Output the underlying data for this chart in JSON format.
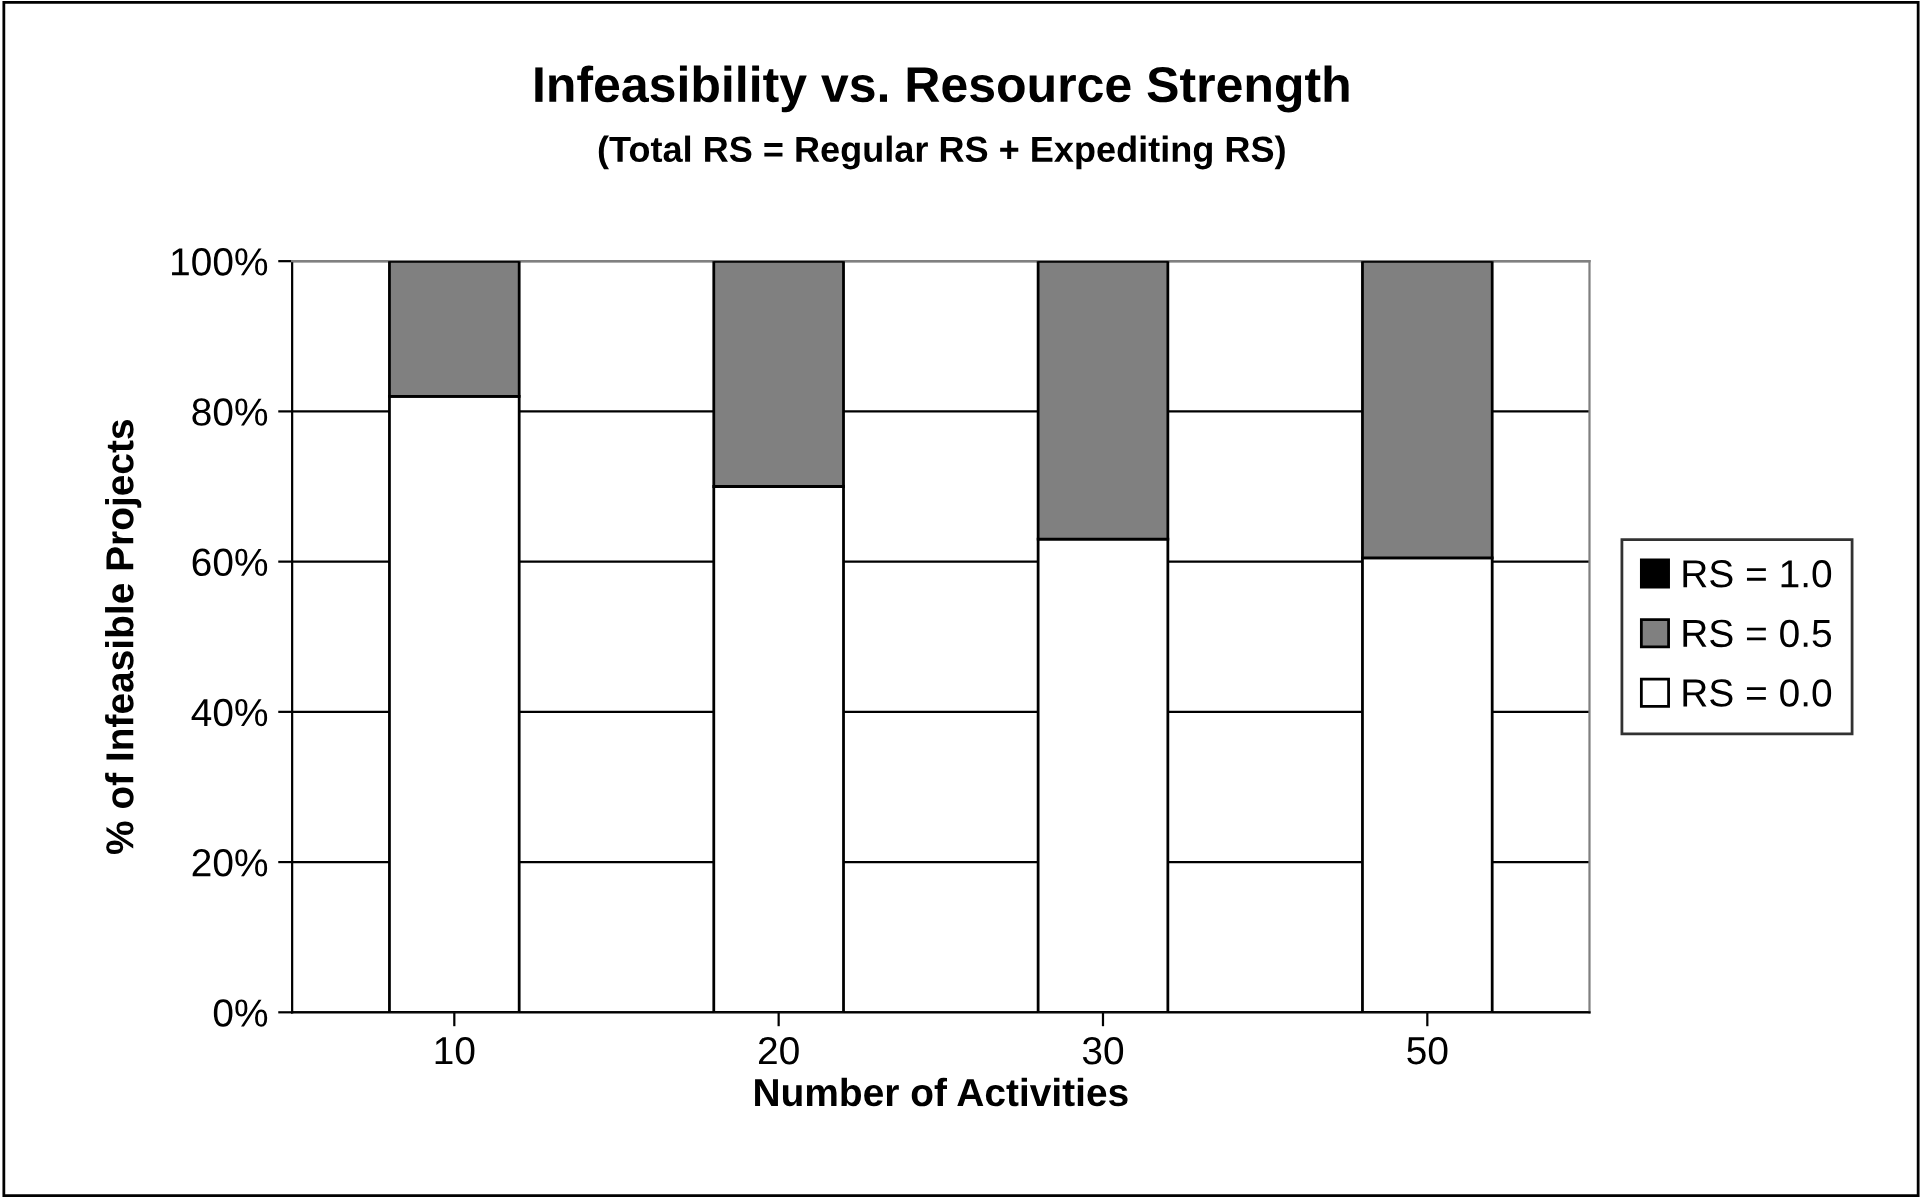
{
  "chart_data": {
    "type": "bar",
    "title": "Infeasibility vs. Resource Strength",
    "subtitle": "(Total RS = Regular RS + Expediting RS)",
    "xlabel": "Number of Activities",
    "ylabel": "% of Infeasible Projects",
    "categories": [
      "10",
      "20",
      "30",
      "50"
    ],
    "stacked": true,
    "series": [
      {
        "name": "RS = 0.0",
        "color": "#ffffff",
        "values": [
          82,
          70,
          63,
          60.5
        ]
      },
      {
        "name": "RS = 0.5",
        "color": "#808080",
        "values": [
          18,
          30,
          37,
          39.5
        ]
      },
      {
        "name": "RS = 1.0",
        "color": "#000000",
        "values": [
          0,
          0,
          0,
          0
        ]
      }
    ],
    "ylim": [
      0,
      100
    ],
    "yticks": [
      {
        "value": 0,
        "label": "0%"
      },
      {
        "value": 20,
        "label": "20%"
      },
      {
        "value": 40,
        "label": "40%"
      },
      {
        "value": 60,
        "label": "60%"
      },
      {
        "value": 80,
        "label": "80%"
      },
      {
        "value": 100,
        "label": "100%"
      }
    ],
    "grid": "y",
    "legend": "right"
  }
}
